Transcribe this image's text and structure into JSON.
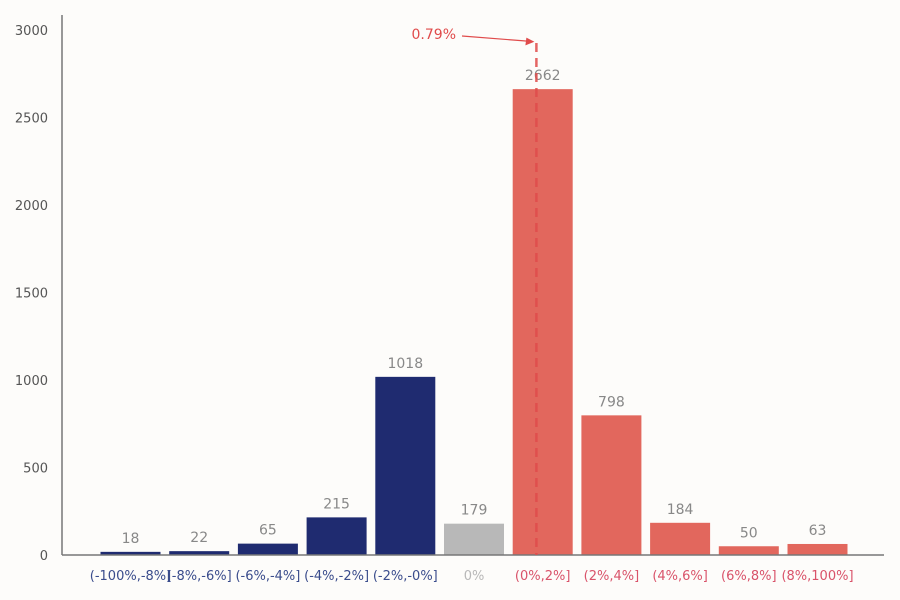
{
  "chart_data": {
    "type": "bar",
    "categories": [
      "(-100%,-8%]",
      "[-8%,-6%]",
      "(-6%,-4%]",
      "(-4%,-2%]",
      "(-2%,-0%]",
      "0%",
      "(0%,2%]",
      "(2%,4%]",
      "(4%,6%]",
      "(6%,8%]",
      "(8%,100%]"
    ],
    "values": [
      18,
      22,
      65,
      215,
      1018,
      179,
      2662,
      798,
      184,
      50,
      63
    ],
    "bar_colors": [
      "#1f2b70",
      "#1f2b70",
      "#1f2b70",
      "#1f2b70",
      "#1f2b70",
      "#b8b8b8",
      "#e2675d",
      "#e2675d",
      "#e2675d",
      "#e2675d",
      "#e2675d"
    ],
    "label_colors": [
      "#3a4c8c",
      "#3a4c8c",
      "#3a4c8c",
      "#3a4c8c",
      "#3a4c8c",
      "#b8b8b8",
      "#d9536a",
      "#d9536a",
      "#d9536a",
      "#d9536a",
      "#d9536a"
    ],
    "yticks": [
      0,
      500,
      1000,
      1500,
      2000,
      2500,
      3000
    ],
    "ylim": [
      0,
      3000
    ],
    "title": "",
    "xlabel": "",
    "ylabel": "",
    "grid": false,
    "annotation": {
      "text": "0.79%",
      "x_value": 0.79,
      "color": "#e04b4b"
    }
  }
}
